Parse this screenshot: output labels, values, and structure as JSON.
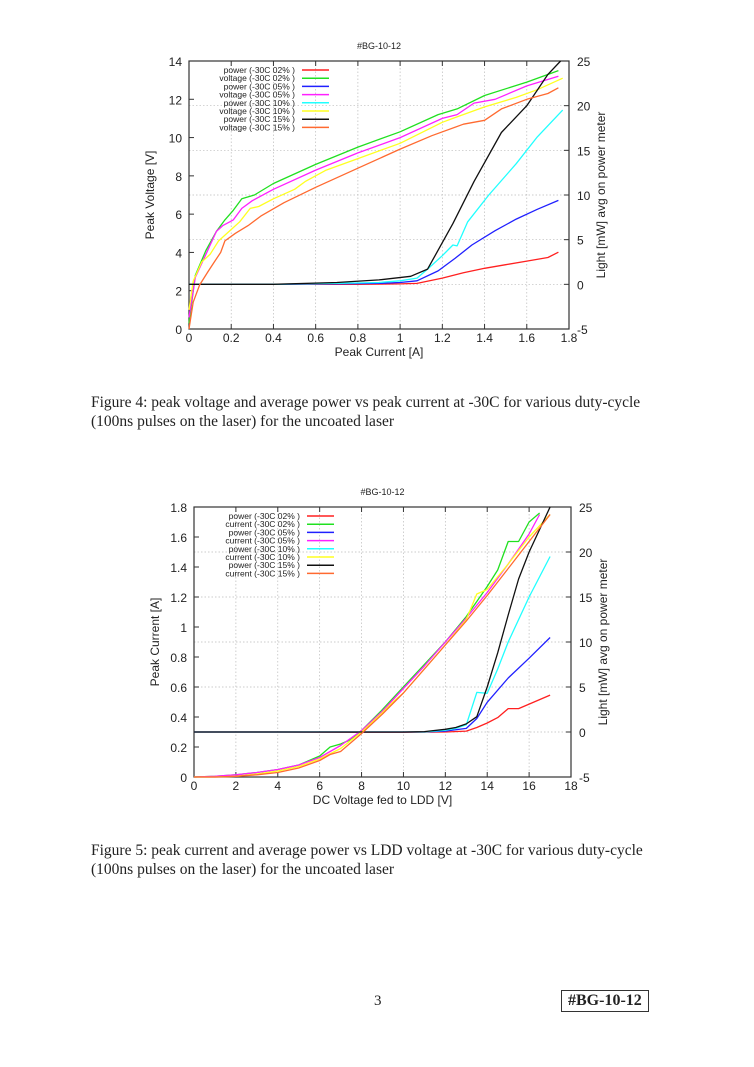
{
  "figures": [
    {
      "caption": "Figure 4: peak voltage and average power vs peak current at -30C for various duty-cycle (100ns pulses on the laser) for the uncoated laser"
    },
    {
      "caption": "Figure 5: peak current and average power vs LDD voltage at -30C for various duty-cycle (100ns pulses on the laser) for the uncoated laser"
    }
  ],
  "footer": {
    "page_number": "3",
    "tag": "#BG-10-12"
  },
  "chart_data": [
    {
      "type": "line",
      "title": "#BG-10-12",
      "xlabel": "Peak Current [A]",
      "ylabel": "Peak Voltage [V]",
      "y2label": "Light [mW] avg on power meter",
      "xlim": [
        0,
        1.8
      ],
      "ylim": [
        0,
        14
      ],
      "y2lim": [
        -5,
        25
      ],
      "xticks": [
        "0",
        "0.2",
        "0.4",
        "0.6",
        "0.8",
        "1",
        "1.2",
        "1.4",
        "1.6",
        "1.8"
      ],
      "yticks": [
        "0",
        "2",
        "4",
        "6",
        "8",
        "10",
        "12",
        "14"
      ],
      "y2ticks": [
        "-5",
        "0",
        "5",
        "10",
        "15",
        "20",
        "25"
      ],
      "grid": true,
      "legend_position": "top-left",
      "series": [
        {
          "name": "power (-30C 02% )",
          "axis": "y2",
          "color": "#ff2020",
          "x": [
            0,
            0.2,
            0.4,
            0.6,
            0.8,
            1.0,
            1.08,
            1.2,
            1.3,
            1.4,
            1.5,
            1.6,
            1.7,
            1.75
          ],
          "y": [
            0,
            0,
            0,
            0,
            0,
            0.05,
            0.1,
            0.7,
            1.3,
            1.8,
            2.2,
            2.6,
            3.0,
            3.6
          ]
        },
        {
          "name": "voltage (-30C 02% )",
          "axis": "y",
          "color": "#20e020",
          "x": [
            0,
            0.03,
            0.08,
            0.13,
            0.17,
            0.21,
            0.25,
            0.31,
            0.4,
            0.6,
            0.8,
            1.0,
            1.18,
            1.27,
            1.4,
            1.6,
            1.75
          ],
          "y": [
            0.3,
            2.8,
            4.1,
            5.1,
            5.7,
            6.2,
            6.8,
            7.0,
            7.6,
            8.6,
            9.5,
            10.3,
            11.2,
            11.5,
            12.2,
            12.9,
            13.5
          ]
        },
        {
          "name": "power (-30C 05% )",
          "axis": "y2",
          "color": "#2020ff",
          "x": [
            0,
            0.4,
            0.7,
            0.9,
            1.0,
            1.08,
            1.18,
            1.26,
            1.34,
            1.45,
            1.55,
            1.65,
            1.75
          ],
          "y": [
            0,
            0,
            0.05,
            0.1,
            0.2,
            0.4,
            1.5,
            2.9,
            4.4,
            6.0,
            7.3,
            8.4,
            9.4
          ]
        },
        {
          "name": "voltage (-30C 05% )",
          "axis": "y",
          "color": "#ff20ff",
          "x": [
            0,
            0.03,
            0.08,
            0.13,
            0.16,
            0.21,
            0.25,
            0.3,
            0.4,
            0.6,
            0.8,
            1.0,
            1.2,
            1.27,
            1.35,
            1.45,
            1.6,
            1.75
          ],
          "y": [
            0.6,
            2.7,
            3.9,
            5.1,
            5.4,
            5.7,
            6.3,
            6.7,
            7.3,
            8.3,
            9.2,
            10.0,
            11.0,
            11.2,
            11.8,
            12.0,
            12.7,
            13.2
          ]
        },
        {
          "name": "power (-30C 10% )",
          "axis": "y2",
          "color": "#20ffff",
          "x": [
            0,
            0.4,
            0.7,
            0.9,
            1.0,
            1.08,
            1.13,
            1.2,
            1.25,
            1.27,
            1.32,
            1.42,
            1.55,
            1.65,
            1.77
          ],
          "y": [
            0,
            0,
            0.1,
            0.2,
            0.4,
            0.7,
            1.7,
            3.2,
            4.4,
            4.3,
            7.0,
            10.0,
            13.5,
            16.5,
            19.5
          ]
        },
        {
          "name": "voltage (-30C 10% )",
          "axis": "y",
          "color": "#ffff20",
          "x": [
            0,
            0.02,
            0.06,
            0.1,
            0.14,
            0.2,
            0.24,
            0.29,
            0.33,
            0.4,
            0.5,
            0.55,
            0.65,
            0.8,
            1.0,
            1.2,
            1.25,
            1.4,
            1.55,
            1.65,
            1.77
          ],
          "y": [
            1.0,
            2.5,
            3.5,
            3.9,
            4.6,
            5.2,
            5.6,
            6.3,
            6.4,
            6.8,
            7.3,
            7.7,
            8.3,
            8.9,
            9.7,
            10.8,
            11.0,
            11.6,
            12.1,
            12.5,
            13.1
          ]
        },
        {
          "name": "power (-30C 15% )",
          "axis": "y2",
          "color": "#101010",
          "x": [
            0,
            0.4,
            0.7,
            0.9,
            1.05,
            1.13,
            1.25,
            1.35,
            1.48,
            1.6,
            1.7,
            1.76
          ],
          "y": [
            0,
            0,
            0.2,
            0.5,
            0.9,
            1.7,
            6.8,
            11.5,
            17.0,
            20.0,
            23.5,
            25.0
          ]
        },
        {
          "name": "voltage (-30C 15% )",
          "axis": "y",
          "color": "#ff6a30",
          "x": [
            0,
            0.02,
            0.05,
            0.09,
            0.12,
            0.15,
            0.17,
            0.22,
            0.28,
            0.34,
            0.45,
            0.6,
            0.8,
            1.0,
            1.15,
            1.3,
            1.4,
            1.48,
            1.6,
            1.7,
            1.75
          ],
          "y": [
            0,
            1.4,
            2.3,
            3.0,
            3.5,
            4.0,
            4.6,
            5.0,
            5.4,
            5.9,
            6.6,
            7.4,
            8.4,
            9.4,
            10.1,
            10.7,
            10.9,
            11.5,
            12.0,
            12.3,
            12.6
          ]
        }
      ]
    },
    {
      "type": "line",
      "title": "#BG-10-12",
      "xlabel": "DC Voltage fed to LDD [V]",
      "ylabel": "Peak Current [A]",
      "y2label": "Light [mW] avg on power meter",
      "xlim": [
        0,
        18
      ],
      "ylim": [
        0,
        1.8
      ],
      "y2lim": [
        -5,
        25
      ],
      "xticks": [
        "0",
        "2",
        "4",
        "6",
        "8",
        "10",
        "12",
        "14",
        "16",
        "18"
      ],
      "yticks": [
        "0",
        "0.2",
        "0.4",
        "0.6",
        "0.8",
        "1",
        "1.2",
        "1.4",
        "1.6",
        "1.8"
      ],
      "y2ticks": [
        "-5",
        "0",
        "5",
        "10",
        "15",
        "20",
        "25"
      ],
      "grid": true,
      "legend_position": "top-left",
      "series": [
        {
          "name": "power (-30C 02% )",
          "axis": "y2",
          "color": "#ff2020",
          "x": [
            0,
            4,
            8,
            10,
            12,
            13,
            13.5,
            14,
            14.5,
            15,
            15.5,
            16,
            16.5,
            17
          ],
          "y": [
            0,
            0,
            -0.05,
            -0.05,
            0,
            0.1,
            0.5,
            1.0,
            1.6,
            2.6,
            2.6,
            3.1,
            3.6,
            4.1
          ]
        },
        {
          "name": "current (-30C 02% )",
          "axis": "y",
          "color": "#20e020",
          "x": [
            0,
            1,
            2,
            3,
            4,
            5,
            6,
            6.5,
            7,
            7.5,
            8,
            9,
            10,
            11,
            12,
            13,
            13.5,
            14,
            14.5,
            15,
            15.5,
            16,
            16.5
          ],
          "y": [
            0,
            0.005,
            0.015,
            0.03,
            0.05,
            0.08,
            0.14,
            0.2,
            0.22,
            0.25,
            0.31,
            0.45,
            0.6,
            0.75,
            0.9,
            1.07,
            1.17,
            1.27,
            1.38,
            1.57,
            1.57,
            1.7,
            1.76
          ]
        },
        {
          "name": "power (-30C 05% )",
          "axis": "y2",
          "color": "#2020ff",
          "x": [
            0,
            4,
            8,
            10,
            11,
            12,
            13,
            13.5,
            14,
            15,
            16,
            17
          ],
          "y": [
            0,
            0,
            0,
            0,
            0,
            0.1,
            0.4,
            1.5,
            3.3,
            6.0,
            8.2,
            10.5
          ]
        },
        {
          "name": "current (-30C 05% )",
          "axis": "y",
          "color": "#ff20ff",
          "x": [
            0,
            1,
            2,
            3,
            4,
            5,
            6,
            7,
            8,
            9,
            10,
            11,
            12,
            13,
            14,
            15,
            16,
            16.5
          ],
          "y": [
            0,
            0.005,
            0.015,
            0.03,
            0.05,
            0.08,
            0.13,
            0.21,
            0.31,
            0.44,
            0.59,
            0.74,
            0.9,
            1.06,
            1.23,
            1.42,
            1.62,
            1.75
          ]
        },
        {
          "name": "power (-30C 10% )",
          "axis": "y2",
          "color": "#20ffff",
          "x": [
            0,
            4,
            8,
            10,
            11,
            12,
            12.5,
            13,
            13.5,
            14,
            14.5,
            15,
            16,
            17
          ],
          "y": [
            0,
            0,
            0,
            0,
            0,
            0.2,
            0.4,
            0.8,
            4.4,
            4.3,
            7.0,
            10.0,
            15.0,
            19.5
          ]
        },
        {
          "name": "current (-30C 10% )",
          "axis": "y",
          "color": "#ffff20",
          "x": [
            0,
            1,
            2,
            3,
            4,
            5,
            6,
            7,
            8,
            9,
            9.5,
            10,
            11,
            11.5,
            12,
            13,
            13.5,
            14,
            15,
            16,
            17
          ],
          "y": [
            0,
            0,
            0.005,
            0.02,
            0.04,
            0.07,
            0.12,
            0.19,
            0.3,
            0.43,
            0.5,
            0.56,
            0.72,
            0.8,
            0.88,
            1.05,
            1.22,
            1.25,
            1.42,
            1.6,
            1.75
          ]
        },
        {
          "name": "power (-30C 15% )",
          "axis": "y2",
          "color": "#101010",
          "x": [
            0,
            4,
            8,
            10,
            11,
            12,
            12.5,
            13,
            13.5,
            14,
            14.5,
            15,
            15.5,
            16,
            17
          ],
          "y": [
            0,
            0,
            0,
            0,
            0.05,
            0.3,
            0.5,
            0.9,
            1.7,
            5.0,
            8.8,
            13.0,
            17.0,
            20.0,
            25.0
          ]
        },
        {
          "name": "current (-30C 15% )",
          "axis": "y",
          "color": "#ff6a30",
          "x": [
            0,
            1,
            2,
            3,
            4,
            5,
            6,
            6.5,
            7,
            7.5,
            8,
            9,
            10,
            11,
            12,
            13,
            14,
            15,
            16,
            17
          ],
          "y": [
            0,
            0,
            0.005,
            0.015,
            0.03,
            0.06,
            0.11,
            0.15,
            0.17,
            0.23,
            0.29,
            0.42,
            0.56,
            0.72,
            0.88,
            1.04,
            1.21,
            1.39,
            1.57,
            1.75
          ]
        }
      ]
    }
  ]
}
